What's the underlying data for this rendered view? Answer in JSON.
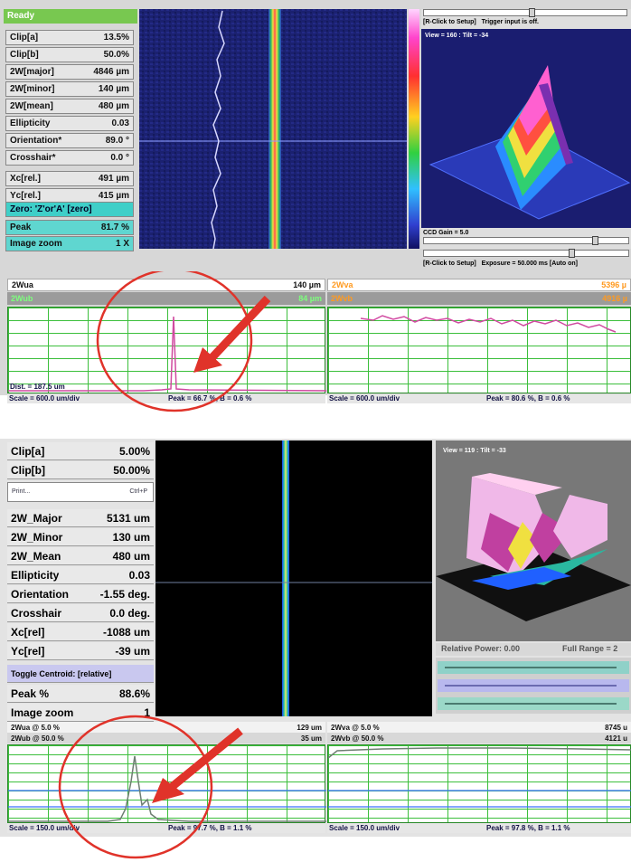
{
  "top": {
    "status": "Ready",
    "params": [
      {
        "label": "Clip[a]",
        "value": "13.5%"
      },
      {
        "label": "Clip[b]",
        "value": "50.0%"
      },
      {
        "label": "2W[major]",
        "value": "4846 µm"
      },
      {
        "label": "2W[minor]",
        "value": "140 µm"
      },
      {
        "label": "2W[mean]",
        "value": "480 µm"
      },
      {
        "label": "Ellipticity",
        "value": "0.03"
      },
      {
        "label": "Orientation*",
        "value": "89.0 °"
      },
      {
        "label": "Crosshair*",
        "value": "0.0 °"
      },
      {
        "label": "Xc[rel.]",
        "value": "491 µm"
      },
      {
        "label": "Yc[rel.]",
        "value": "415 µm"
      }
    ],
    "zero_button": "Zero: 'Z'or'A' [zero]",
    "peak": {
      "label": "Peak",
      "value": "81.7 %"
    },
    "zoom": {
      "label": "Image zoom",
      "value": "1 X"
    },
    "right": {
      "setup_hint": "[R-Click to Setup]",
      "trigger": "Trigger input is off.",
      "view": "View = 160 : Tilt = -34",
      "gain": "CCD Gain = 5.0",
      "setup_hint2": "[R-Click to Setup]",
      "exposure": "Exposure = 50.000 ms [Auto on]"
    },
    "profiles": {
      "a_label": "2Wua",
      "a_value": "140 µm",
      "b_label": "2Wub",
      "b_value": "84 µm",
      "c_label": "2Wva",
      "c_value": "5396 µ",
      "d_label": "2Wvb",
      "d_value": "4916 µ",
      "dist": "Dist. = 187.5 um",
      "scale_left": "Scale = 600.0 um/div",
      "peak_left": "Peak = 66.7 %, B = 0.6 %",
      "scale_right": "Scale = 600.0 um/div",
      "peak_right": "Peak = 80.6 %, B = 0.6 %"
    }
  },
  "bottom": {
    "params_top": [
      {
        "label": "Clip[a]",
        "value": "5.00%"
      },
      {
        "label": "Clip[b]",
        "value": "50.00%"
      }
    ],
    "menu": {
      "item": "Print...",
      "shortcut": "Ctrl+P"
    },
    "params": [
      {
        "label": "2W_Major",
        "value": "5131 um"
      },
      {
        "label": "2W_Minor",
        "value": "130 um"
      },
      {
        "label": "2W_Mean",
        "value": "480 um"
      },
      {
        "label": "Ellipticity",
        "value": "0.03"
      },
      {
        "label": "Orientation",
        "value": "-1.55 deg."
      },
      {
        "label": "Crosshair",
        "value": "0.0 deg."
      },
      {
        "label": "Xc[rel]",
        "value": "-1088 um"
      },
      {
        "label": "Yc[rel]",
        "value": "-39 um"
      }
    ],
    "toggle": "Toggle Centroid: [relative]",
    "peak": {
      "label": "Peak %",
      "value": "88.6%"
    },
    "zoom": {
      "label": "Image zoom",
      "value": "1"
    },
    "right": {
      "view": "View = 119 : Tilt = -33",
      "relpower": "Relative Power: 0.00",
      "fullrange": "Full Range = 2"
    },
    "profiles": {
      "a_label": "2Wua @ 5.0 %",
      "a_value": "129 um",
      "b_label": "2Wub @ 50.0 %",
      "b_value": "35 um",
      "c_label": "2Wva @ 5.0 %",
      "c_value": "8745 u",
      "d_label": "2Wvb @ 50.0 %",
      "d_value": "4121 u",
      "scale_left": "Scale = 150.0 um/div",
      "peak_left": "Peak = 97.7 %, B = 1.1 %",
      "scale_right": "Scale = 150.0 um/div",
      "peak_right": "Peak = 97.8 %, B = 1.1 %"
    }
  },
  "colors": {
    "teal": "#3fcfc8",
    "grid": "#3cbf3c",
    "annotation": "#e0332a",
    "trace": "#d04aa0"
  }
}
